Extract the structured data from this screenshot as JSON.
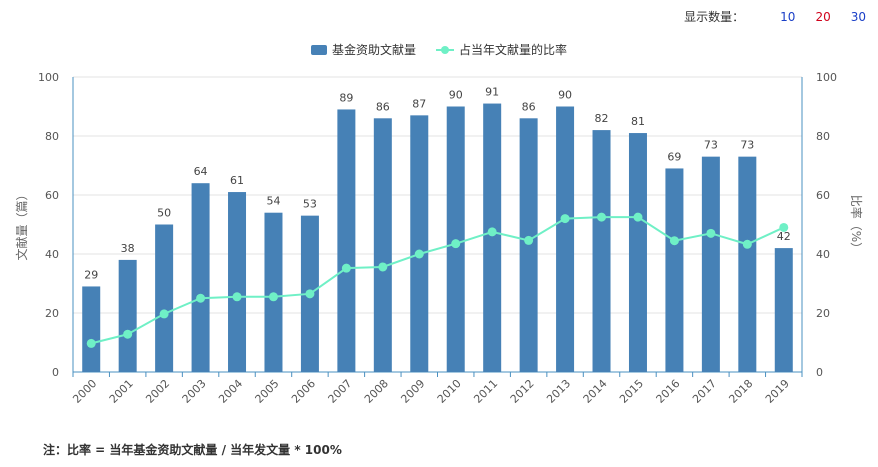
{
  "topbar": {
    "label": "显示数量：",
    "options": [
      {
        "text": "10",
        "color": "#1a3fc7"
      },
      {
        "text": "20",
        "color": "#d0021b"
      },
      {
        "text": "30",
        "color": "#1a3fc7"
      }
    ]
  },
  "note": "注：比率 = 当年基金资助文献量 / 当年发文量 * 100%",
  "chart_data": {
    "type": "bar",
    "categories": [
      "2000",
      "2001",
      "2002",
      "2003",
      "2004",
      "2005",
      "2006",
      "2007",
      "2008",
      "2009",
      "2010",
      "2011",
      "2012",
      "2013",
      "2014",
      "2015",
      "2016",
      "2017",
      "2018",
      "2019"
    ],
    "series": [
      {
        "name": "基金资助文献量",
        "type": "bar",
        "axis": "left",
        "color": "#4681b6",
        "values": [
          29,
          38,
          50,
          64,
          61,
          54,
          53,
          89,
          86,
          87,
          90,
          91,
          86,
          90,
          82,
          81,
          69,
          73,
          73,
          42
        ]
      },
      {
        "name": "占当年文献量的比率",
        "type": "line",
        "axis": "right",
        "color": "#6ff0c6",
        "values": [
          9.7,
          12.8,
          19.7,
          25.0,
          25.5,
          25.5,
          26.5,
          35.2,
          35.6,
          40.0,
          43.5,
          47.5,
          44.6,
          52.0,
          52.5,
          52.5,
          44.5,
          47.0,
          43.3,
          49.0
        ]
      }
    ],
    "ylabel_left": "文献量（篇）",
    "ylabel_right": "比率（%）",
    "ylim_left": [
      0,
      100
    ],
    "ylim_right": [
      0,
      100
    ],
    "yticks": [
      0,
      20,
      40,
      60,
      80,
      100
    ],
    "grid": true,
    "legend": "top-center"
  }
}
